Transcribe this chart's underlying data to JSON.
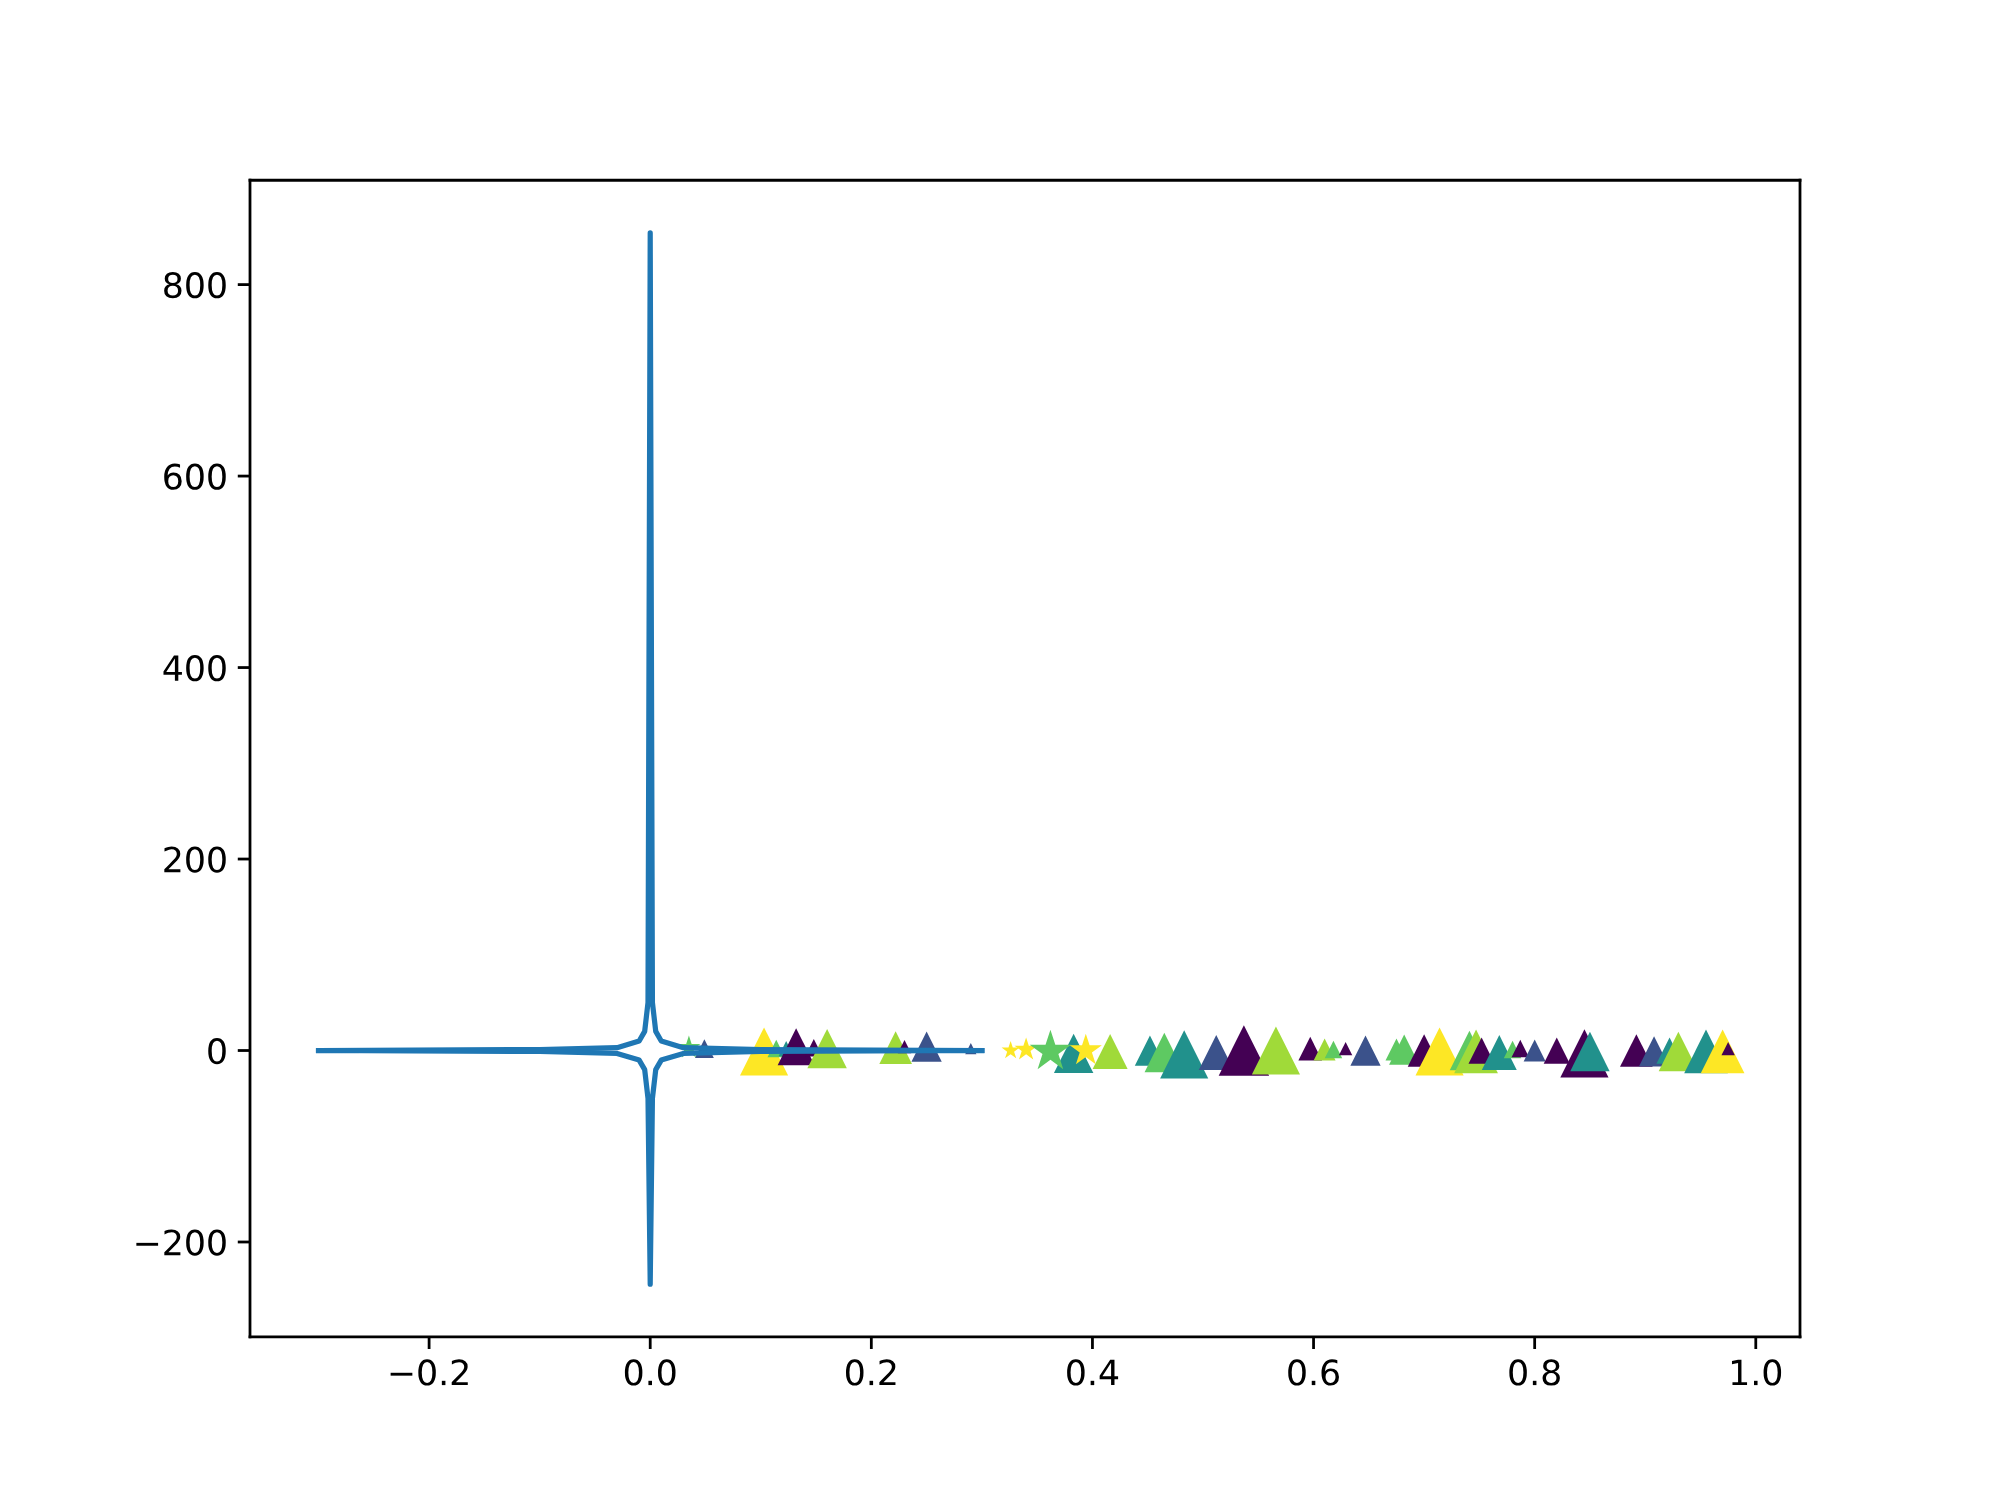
{
  "chart_data": {
    "type": "line",
    "xlim": [
      -0.362,
      1.04
    ],
    "ylim": [
      -299,
      909
    ],
    "xticks": [
      {
        "value": -0.2,
        "label": "−0.2"
      },
      {
        "value": 0.0,
        "label": "0.0"
      },
      {
        "value": 0.2,
        "label": "0.2"
      },
      {
        "value": 0.4,
        "label": "0.4"
      },
      {
        "value": 0.6,
        "label": "0.6"
      },
      {
        "value": 0.8,
        "label": "0.8"
      },
      {
        "value": 1.0,
        "label": "1.0"
      }
    ],
    "yticks": [
      {
        "value": -200,
        "label": "−200"
      },
      0,
      200,
      400,
      600,
      800
    ],
    "series": [
      {
        "type": "bubble",
        "marker": "triangle",
        "x": [
          0.049,
          0.103,
          0.114,
          0.123,
          0.132,
          0.148,
          0.16,
          0.222,
          0.23,
          0.25,
          0.29,
          0.383,
          0.416,
          0.452,
          0.465,
          0.483,
          0.512,
          0.537,
          0.566,
          0.597,
          0.61,
          0.618,
          0.629,
          0.647,
          0.675,
          0.682,
          0.7,
          0.714,
          0.741,
          0.747,
          0.752,
          0.768,
          0.78,
          0.787,
          0.8,
          0.82,
          0.845,
          0.85,
          0.892,
          0.908,
          0.922,
          0.93,
          0.955,
          0.97,
          0.975
        ],
        "values": [
          2,
          -1,
          2,
          2,
          4,
          3,
          2,
          3,
          4,
          4,
          2,
          -3,
          -1,
          0,
          -2,
          -4,
          -2,
          0,
          0,
          2,
          1,
          1,
          2,
          0,
          1,
          1,
          0,
          -1,
          0,
          -1,
          0,
          -2,
          1,
          2,
          0,
          0,
          -3,
          -1,
          0,
          -1,
          0,
          -1,
          -1,
          -1,
          2
        ],
        "sizes": [
          0.14,
          0.91,
          0.12,
          0.09,
          0.54,
          0.12,
          0.61,
          0.42,
          0.07,
          0.36,
          0.05,
          0.61,
          0.48,
          0.36,
          0.61,
          0.91,
          0.48,
          1,
          0.91,
          0.22,
          0.19,
          0.12,
          0.07,
          0.36,
          0.19,
          0.36,
          0.42,
          0.91,
          0.61,
          0.75,
          0.27,
          0.48,
          0.12,
          0.12,
          0.19,
          0.27,
          0.91,
          0.61,
          0.42,
          0.36,
          0.27,
          0.61,
          0.75,
          0.75,
          0.07
        ],
        "colors": [
          "#3b528b",
          "#fde725",
          "#5ec962",
          "#21918c",
          "#440154",
          "#440154",
          "#a0da39",
          "#a0da39",
          "#440154",
          "#3b528b",
          "#3b528b",
          "#21918c",
          "#a0da39",
          "#21918c",
          "#5ec962",
          "#21918c",
          "#3b528b",
          "#440154",
          "#a0da39",
          "#440154",
          "#a0da39",
          "#5ec962",
          "#440154",
          "#3b528b",
          "#5ec962",
          "#5ec962",
          "#440154",
          "#fde725",
          "#5ec962",
          "#a0da39",
          "#440154",
          "#21918c",
          "#5ec962",
          "#440154",
          "#3b528b",
          "#440154",
          "#440154",
          "#21918c",
          "#440154",
          "#3b528b",
          "#21918c",
          "#a0da39",
          "#21918c",
          "#fde725",
          "#440154"
        ]
      },
      {
        "type": "bubble",
        "marker": "star",
        "x": [
          0.035,
          0.326,
          0.34,
          0.362,
          0.394
        ],
        "values": [
          3,
          0,
          1,
          -1,
          0
        ],
        "sizes": [
          0.13,
          0.08,
          0.13,
          0.42,
          0.25
        ],
        "colors": [
          "#5ec962",
          "#fde725",
          "#fde725",
          "#5ec962",
          "#fde725"
        ]
      },
      {
        "color": "#1f77b4",
        "x": [
          -0.3,
          -0.1,
          -0.03,
          -0.01,
          -0.005,
          -0.002,
          0,
          0.002,
          0.005,
          0.01,
          0.03,
          0.1,
          0.3
        ],
        "values": [
          0,
          1,
          3,
          10,
          20,
          50,
          854,
          50,
          20,
          10,
          3,
          1,
          0
        ]
      },
      {
        "color": "#1f77b4",
        "x": [
          -0.3,
          -0.1,
          -0.03,
          -0.01,
          -0.005,
          -0.002,
          0,
          0.002,
          0.005,
          0.01,
          0.03,
          0.1,
          0.3
        ],
        "values": [
          0,
          -1,
          -3,
          -10,
          -20,
          -50,
          -244,
          -50,
          -20,
          -10,
          -3,
          -1,
          0
        ]
      }
    ]
  }
}
